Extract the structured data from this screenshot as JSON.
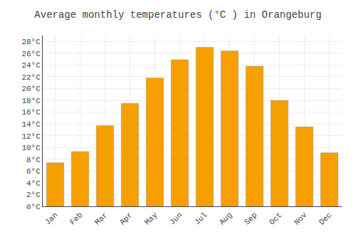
{
  "chart_data": {
    "type": "bar",
    "title": "Average monthly temperatures (°C ) in Orangeburg",
    "categories": [
      "Jan",
      "Feb",
      "Mar",
      "Apr",
      "May",
      "Jun",
      "Jul",
      "Aug",
      "Sep",
      "Oct",
      "Nov",
      "Dec"
    ],
    "values": [
      7.4,
      9.3,
      13.7,
      17.5,
      21.8,
      24.9,
      27.0,
      26.4,
      23.8,
      18.0,
      13.5,
      9.1
    ],
    "color": "#F5A000",
    "ylim": [
      0,
      29
    ],
    "yticks": [
      {
        "value": 0,
        "label": "0°C"
      },
      {
        "value": 2,
        "label": "2°C"
      },
      {
        "value": 4,
        "label": "4°C"
      },
      {
        "value": 6,
        "label": "6°C"
      },
      {
        "value": 8,
        "label": "8°C"
      },
      {
        "value": 10,
        "label": "10°C"
      },
      {
        "value": 12,
        "label": "12°C"
      },
      {
        "value": 14,
        "label": "14°C"
      },
      {
        "value": 16,
        "label": "16°C"
      },
      {
        "value": 18,
        "label": "18°C"
      },
      {
        "value": 20,
        "label": "20°C"
      },
      {
        "value": 22,
        "label": "22°C"
      },
      {
        "value": 24,
        "label": "24°C"
      },
      {
        "value": 26,
        "label": "26°C"
      },
      {
        "value": 28,
        "label": "28°C"
      }
    ],
    "grid": true
  }
}
